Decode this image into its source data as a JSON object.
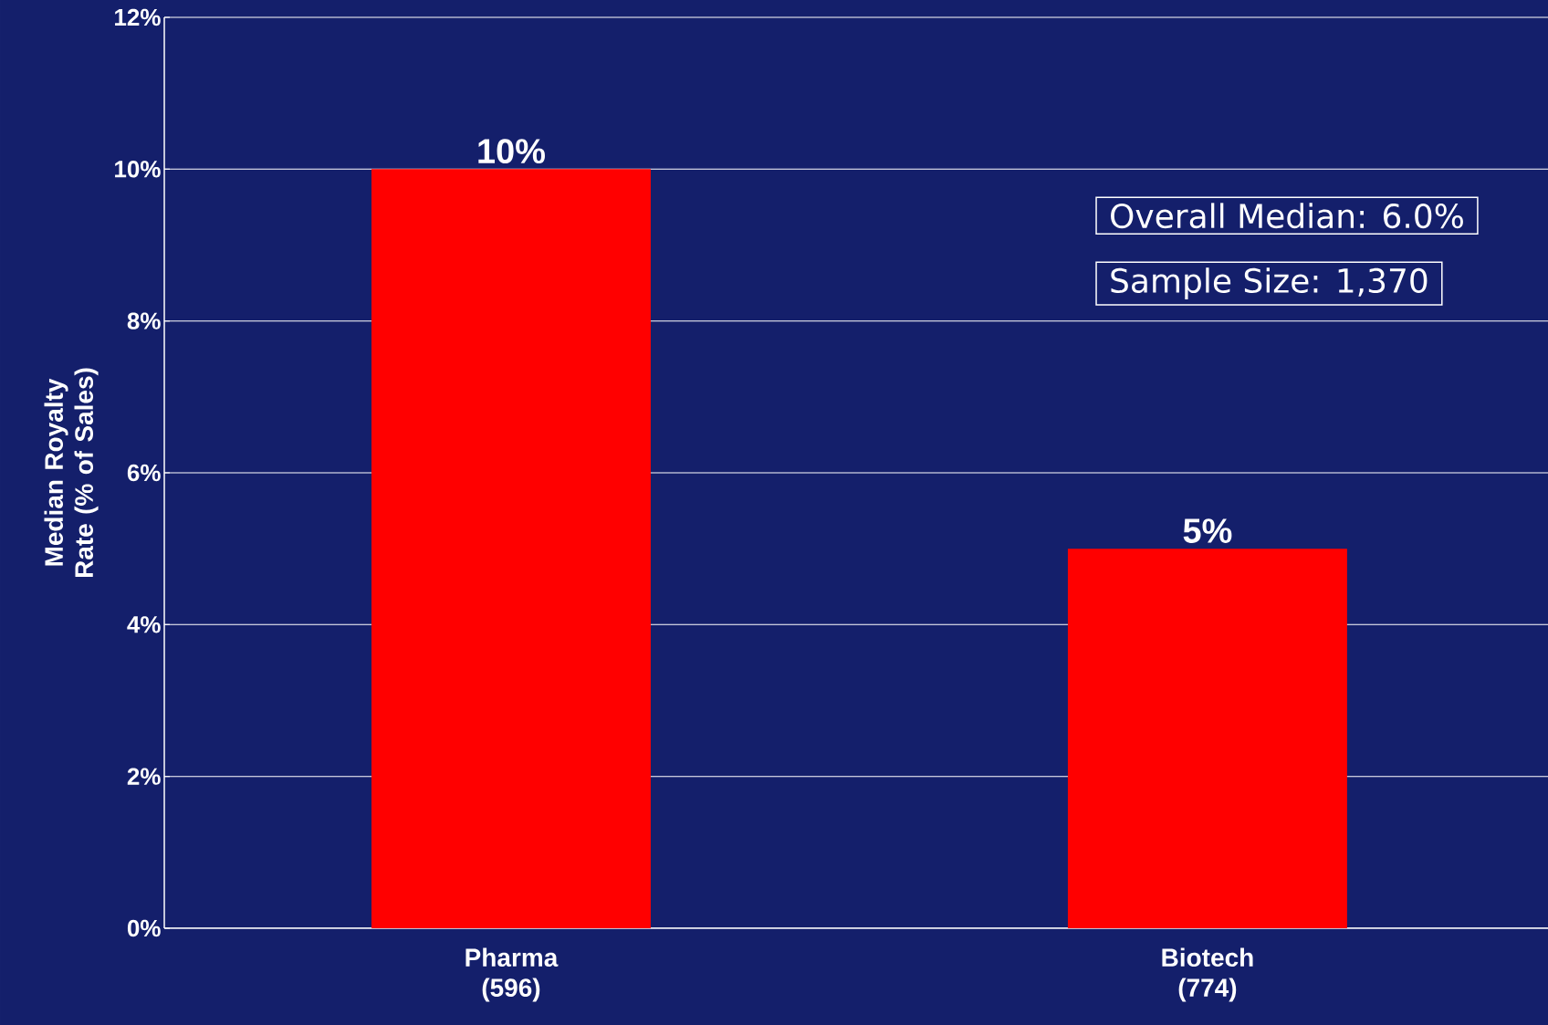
{
  "chart_data": {
    "type": "bar",
    "ylabel": "Median Royalty Rate (% of Sales)",
    "categories": [
      "Pharma (596)",
      "Biotech (774)"
    ],
    "values": [
      10,
      5
    ],
    "color": "#ff0000",
    "value_labels": [
      "10%",
      "5%"
    ],
    "ylim": [
      0,
      12
    ],
    "yticks": [
      {
        "value": 0,
        "label": "0%"
      },
      {
        "value": 2,
        "label": "2%"
      },
      {
        "value": 4,
        "label": "4%"
      },
      {
        "value": 6,
        "label": "6%"
      },
      {
        "value": 8,
        "label": "8%"
      },
      {
        "value": 10,
        "label": "10%"
      },
      {
        "value": 12,
        "label": "12%"
      }
    ],
    "grid": "y",
    "annotations": [
      "Overall Median: 6.0%",
      "Sample Size: 1,370"
    ]
  }
}
